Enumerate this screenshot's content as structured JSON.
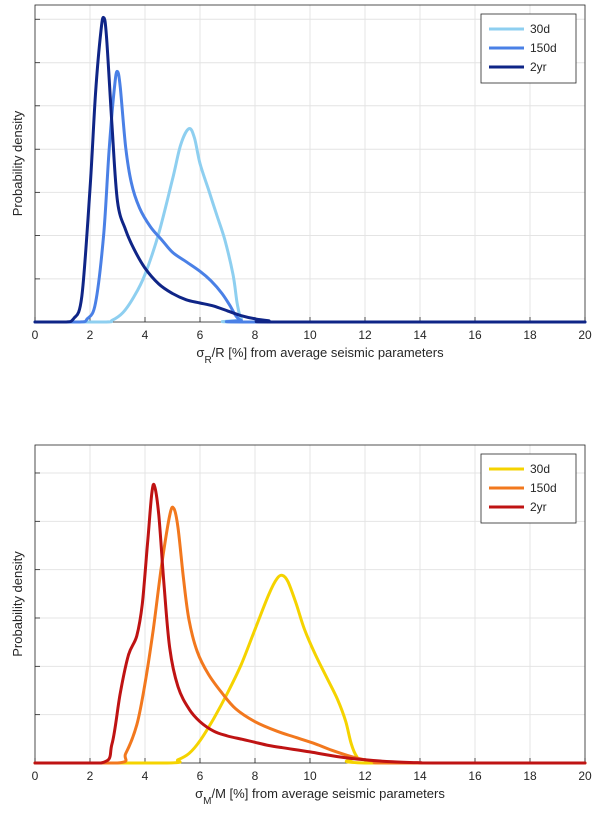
{
  "chart_data": [
    {
      "type": "line",
      "xlabel_main": "σ",
      "xlabel_sub": "R",
      "xlabel_rest": "/R [%] from average seismic parameters",
      "ylabel": "Probability density",
      "xlim": [
        0,
        20
      ],
      "ylim": [
        0,
        1
      ],
      "xticks": [
        0,
        2,
        4,
        6,
        8,
        10,
        12,
        14,
        16,
        18,
        20
      ],
      "xtick_labels": [
        "0",
        "2",
        "4",
        "6",
        "8",
        "10",
        "12",
        "14",
        "16",
        "18",
        "20"
      ],
      "yticks": [
        0,
        0.136,
        0.273,
        0.409,
        0.545,
        0.682,
        0.818,
        0.955
      ],
      "ytick_labels_shown": false,
      "grid": true,
      "legend_position": "top-right",
      "series": [
        {
          "name": "30d",
          "color": "#8ecff0",
          "x": [
            0,
            2.5,
            2.8,
            3.2,
            3.6,
            4.0,
            4.5,
            5.0,
            5.3,
            5.6,
            5.8,
            6.0,
            6.3,
            6.6,
            6.9,
            7.2,
            7.35,
            7.5,
            7.8,
            20
          ],
          "y": [
            0,
            0,
            0.005,
            0.03,
            0.08,
            0.15,
            0.28,
            0.45,
            0.56,
            0.61,
            0.58,
            0.5,
            0.42,
            0.34,
            0.26,
            0.15,
            0.06,
            0.01,
            0,
            0
          ]
        },
        {
          "name": "150d",
          "color": "#4a80e6",
          "x": [
            0,
            1.6,
            1.9,
            2.2,
            2.5,
            2.7,
            2.9,
            3.0,
            3.1,
            3.3,
            3.5,
            3.8,
            4.2,
            4.6,
            5.0,
            5.5,
            6.0,
            6.4,
            6.8,
            7.1,
            7.3,
            7.5,
            8.0,
            20
          ],
          "y": [
            0,
            0,
            0.01,
            0.06,
            0.28,
            0.55,
            0.75,
            0.79,
            0.74,
            0.55,
            0.44,
            0.36,
            0.3,
            0.26,
            0.22,
            0.19,
            0.16,
            0.13,
            0.09,
            0.05,
            0.02,
            0.005,
            0,
            0
          ]
        },
        {
          "name": "2yr",
          "color": "#0f2587",
          "x": [
            0,
            1.1,
            1.4,
            1.7,
            2.0,
            2.2,
            2.4,
            2.5,
            2.6,
            2.8,
            3.0,
            3.3,
            3.6,
            4.0,
            4.5,
            5.0,
            5.5,
            6.0,
            6.5,
            7.0,
            7.5,
            8.0,
            8.5,
            9.0,
            20
          ],
          "y": [
            0,
            0,
            0.01,
            0.08,
            0.42,
            0.72,
            0.92,
            0.96,
            0.9,
            0.62,
            0.38,
            0.29,
            0.23,
            0.17,
            0.12,
            0.09,
            0.07,
            0.06,
            0.05,
            0.035,
            0.02,
            0.01,
            0.004,
            0,
            0
          ]
        }
      ]
    },
    {
      "type": "line",
      "xlabel_main": "σ",
      "xlabel_sub": "M",
      "xlabel_rest": "/M [%] from average seismic parameters",
      "ylabel": "Probability density",
      "xlim": [
        0,
        20
      ],
      "ylim": [
        0,
        1
      ],
      "xticks": [
        0,
        2,
        4,
        6,
        8,
        10,
        12,
        14,
        16,
        18,
        20
      ],
      "xtick_labels": [
        "0",
        "2",
        "4",
        "6",
        "8",
        "10",
        "12",
        "14",
        "16",
        "18",
        "20"
      ],
      "yticks": [
        0,
        0.152,
        0.304,
        0.456,
        0.608,
        0.76,
        0.912
      ],
      "ytick_labels_shown": false,
      "grid": true,
      "legend_position": "top-right",
      "series": [
        {
          "name": "30d",
          "color": "#f5d300",
          "x": [
            0,
            4.8,
            5.2,
            5.6,
            6.0,
            6.5,
            7.0,
            7.5,
            8.0,
            8.5,
            8.8,
            9.0,
            9.2,
            9.5,
            9.8,
            10.2,
            10.6,
            11.0,
            11.3,
            11.5,
            11.7,
            12.0,
            20
          ],
          "y": [
            0,
            0,
            0.01,
            0.03,
            0.07,
            0.14,
            0.22,
            0.31,
            0.42,
            0.53,
            0.58,
            0.59,
            0.57,
            0.5,
            0.42,
            0.34,
            0.27,
            0.2,
            0.13,
            0.06,
            0.02,
            0,
            0
          ]
        },
        {
          "name": "150d",
          "color": "#f2781e",
          "x": [
            0,
            3.0,
            3.3,
            3.7,
            4.0,
            4.3,
            4.6,
            4.9,
            5.05,
            5.2,
            5.4,
            5.6,
            5.9,
            6.3,
            6.8,
            7.3,
            8.0,
            8.8,
            9.5,
            10.2,
            10.8,
            11.5,
            12.0,
            12.5,
            13.0,
            20
          ],
          "y": [
            0,
            0,
            0.03,
            0.12,
            0.25,
            0.42,
            0.62,
            0.78,
            0.8,
            0.74,
            0.58,
            0.45,
            0.35,
            0.28,
            0.22,
            0.17,
            0.13,
            0.1,
            0.08,
            0.06,
            0.04,
            0.02,
            0.01,
            0.004,
            0,
            0
          ]
        },
        {
          "name": "2yr",
          "color": "#bf1313",
          "x": [
            0,
            2.4,
            2.8,
            3.1,
            3.4,
            3.7,
            3.9,
            4.1,
            4.25,
            4.35,
            4.5,
            4.7,
            4.9,
            5.2,
            5.6,
            6.0,
            6.5,
            7.0,
            7.5,
            8.0,
            8.5,
            9.0,
            10.0,
            11.0,
            12.0,
            13.0,
            14.0,
            14.5,
            20
          ],
          "y": [
            0,
            0,
            0.06,
            0.22,
            0.34,
            0.4,
            0.5,
            0.7,
            0.85,
            0.87,
            0.78,
            0.55,
            0.36,
            0.24,
            0.17,
            0.13,
            0.1,
            0.085,
            0.075,
            0.065,
            0.055,
            0.048,
            0.035,
            0.02,
            0.01,
            0.004,
            0.001,
            0,
            0
          ]
        }
      ]
    }
  ]
}
